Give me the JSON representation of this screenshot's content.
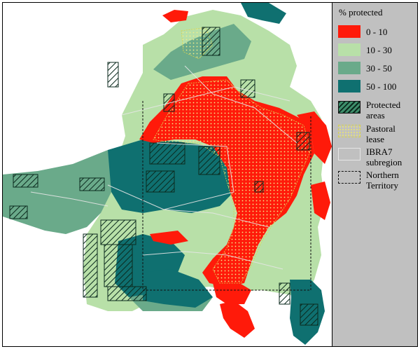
{
  "legend": {
    "title": "% protected",
    "classes": [
      {
        "label": "0 - 10",
        "color": "#ff1a0a"
      },
      {
        "label": "10 - 30",
        "color": "#b8e0a8"
      },
      {
        "label": "30 - 50",
        "color": "#6aaa8a"
      },
      {
        "label": "50 - 100",
        "color": "#0f7070"
      }
    ],
    "overlays": [
      {
        "label_line1": "Protected",
        "label_line2": "areas",
        "style": "hatched"
      },
      {
        "label_line1": "Pastoral",
        "label_line2": "lease",
        "style": "yellow-dotted"
      },
      {
        "label_line1": "IBRA7",
        "label_line2": "subregion",
        "style": "grey-outline"
      },
      {
        "label_line1": "Northern",
        "label_line2": "Territory",
        "style": "black-dashed"
      }
    ]
  },
  "colors": {
    "protected_0_10": "#ff1a0a",
    "protected_10_30": "#b8e0a8",
    "protected_30_50": "#6aaa8a",
    "protected_50_100": "#0f7070",
    "legend_background": "#c0c0c0",
    "hatch": "#0b2a1e",
    "pastoral": "#e6e07a",
    "ibra_outline": "#e6e6e6"
  }
}
